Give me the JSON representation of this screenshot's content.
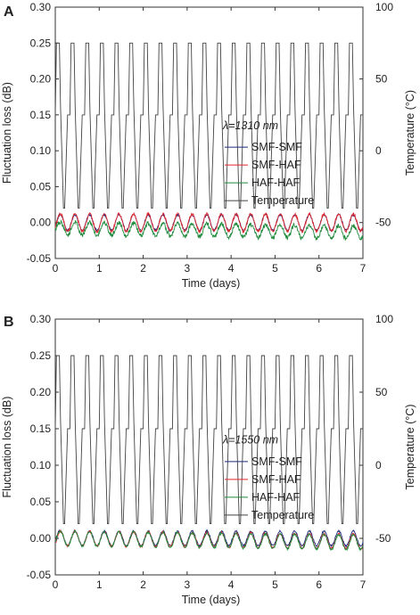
{
  "chart_data": [
    {
      "panel_label": "A",
      "type": "line",
      "annotation": "λ=1310 nm",
      "xlabel": "Time (days)",
      "ylabel": "Fluctuation loss (dB)",
      "y2label": "Temperature (°C)",
      "xlim": [
        0,
        7
      ],
      "ylim": [
        -0.05,
        0.3
      ],
      "y2lim": [
        -75,
        100
      ],
      "xticks": [
        "0",
        "1",
        "2",
        "3",
        "4",
        "5",
        "6",
        "7"
      ],
      "yticks": [
        "-0.05",
        "0.00",
        "0.05",
        "0.10",
        "0.15",
        "0.20",
        "0.25",
        "0.30"
      ],
      "y2ticks": [
        "-50",
        "0",
        "50",
        "100"
      ],
      "grid": false,
      "legend_position": "center-right",
      "cycles_per_day": 3,
      "temperature": {
        "min": -40,
        "max": 75,
        "plateau_high": 30,
        "plateau_low": 25
      },
      "series": [
        {
          "name": "SMF-SMF",
          "color": "#1f2a7a",
          "offset": 0.0,
          "amplitude": 0.011,
          "noise": 0.0015,
          "drift": 0.0
        },
        {
          "name": "SMF-HAF",
          "color": "#e0262d",
          "offset": 0.0,
          "amplitude": 0.012,
          "noise": 0.002,
          "drift": 0.0
        },
        {
          "name": "HAF-HAF",
          "color": "#1e8a3c",
          "offset": -0.008,
          "amplitude": 0.009,
          "noise": 0.003,
          "drift": -0.0008
        },
        {
          "name": "Temperature",
          "color": "#444444"
        }
      ]
    },
    {
      "panel_label": "B",
      "type": "line",
      "annotation": "λ=1550 nm",
      "xlabel": "Time (days)",
      "ylabel": "Fluctuation loss (dB)",
      "y2label": "Temperature (°C)",
      "xlim": [
        0,
        7
      ],
      "ylim": [
        -0.05,
        0.3
      ],
      "y2lim": [
        -75,
        100
      ],
      "xticks": [
        "0",
        "1",
        "2",
        "3",
        "4",
        "5",
        "6",
        "7"
      ],
      "yticks": [
        "-0.05",
        "0.00",
        "0.05",
        "0.10",
        "0.15",
        "0.20",
        "0.25",
        "0.30"
      ],
      "y2ticks": [
        "-50",
        "0",
        "50",
        "100"
      ],
      "grid": false,
      "legend_position": "center-right",
      "cycles_per_day": 3,
      "temperature": {
        "min": -40,
        "max": 75,
        "plateau_high": 30,
        "plateau_low": 25
      },
      "series": [
        {
          "name": "SMF-SMF",
          "color": "#1f2a7a",
          "offset": 0.0,
          "amplitude": 0.01,
          "noise": 0.0012,
          "drift": 0.0
        },
        {
          "name": "SMF-HAF",
          "color": "#e0262d",
          "offset": 0.0,
          "amplitude": 0.01,
          "noise": 0.0015,
          "drift": -0.0006
        },
        {
          "name": "HAF-HAF",
          "color": "#1e8a3c",
          "offset": 0.0,
          "amplitude": 0.01,
          "noise": 0.0015,
          "drift": -0.0008
        },
        {
          "name": "Temperature",
          "color": "#444444"
        }
      ]
    }
  ]
}
